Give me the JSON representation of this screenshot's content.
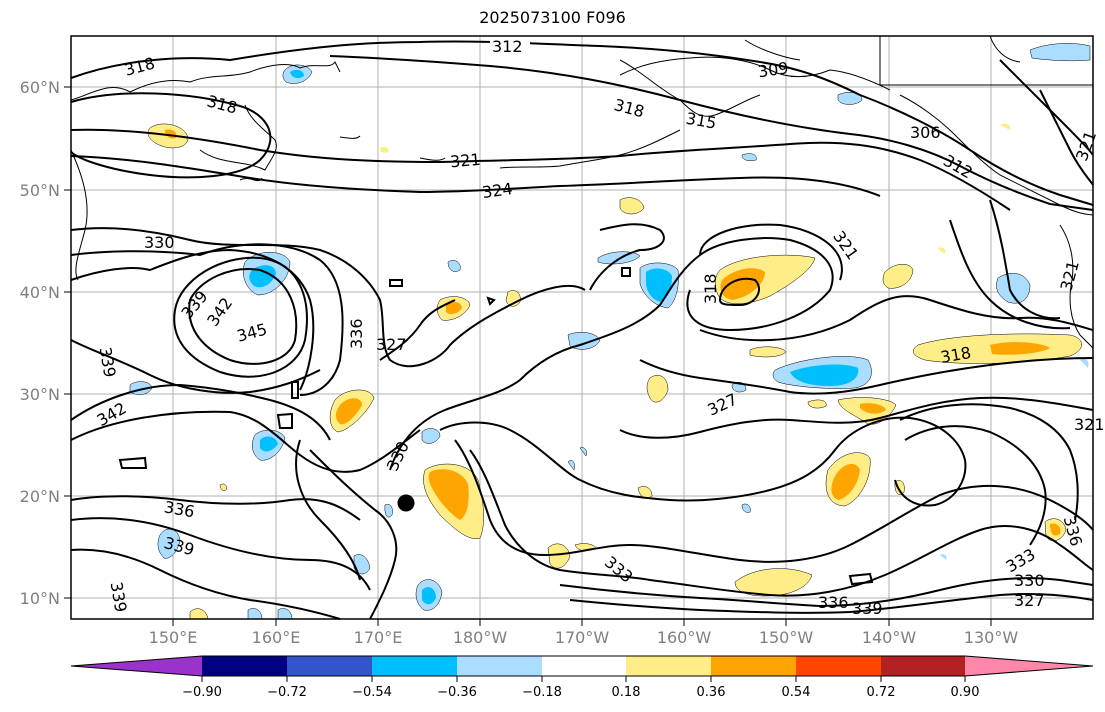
{
  "title": "2025073100 F096",
  "map": {
    "lat_ticks": [
      "60°N",
      "50°N",
      "40°N",
      "30°N",
      "20°N",
      "10°N"
    ],
    "lon_ticks": [
      "150°E",
      "160°E",
      "170°E",
      "180°W",
      "170°W",
      "160°W",
      "150°W",
      "140°W",
      "130°W"
    ],
    "contour_labels": [
      "312",
      "318",
      "318",
      "309",
      "318",
      "315",
      "306",
      "321",
      "324",
      "312",
      "321",
      "330",
      "321",
      "339",
      "342",
      "345",
      "336",
      "327",
      "318",
      "339",
      "321",
      "342",
      "318",
      "321",
      "327",
      "330",
      "336",
      "339",
      "333",
      "339",
      "336",
      "333",
      "330",
      "327",
      "339",
      "336"
    ],
    "marker": "storm-center-dot"
  },
  "colorbar": {
    "ticks": [
      "−0.90",
      "−0.72",
      "−0.54",
      "−0.36",
      "−0.18",
      "0.18",
      "0.36",
      "0.54",
      "0.72",
      "0.90"
    ],
    "colors": [
      "#9933cc",
      "#000080",
      "#3355cc",
      "#00bfff",
      "#aaddff",
      "#ffffff",
      "#ffee88",
      "#ffa500",
      "#ff4500",
      "#b22222",
      "#ff88aa"
    ]
  }
}
